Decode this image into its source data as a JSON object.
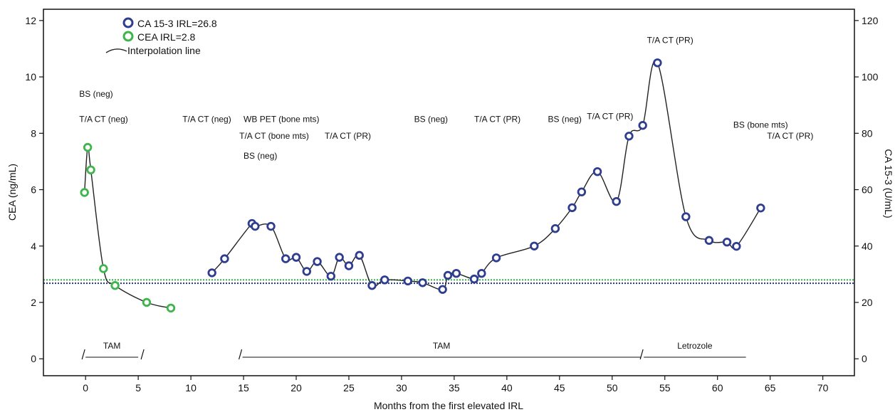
{
  "chart_data": {
    "type": "line",
    "xlabel": "Months from the first elevated IRL",
    "ylabel_left": "CEA (ng/mL)",
    "ylabel_right": "CA 15-3 (U/mL)",
    "xlim": [
      -4,
      73
    ],
    "ylim_left": [
      -0.6,
      12.4
    ],
    "ylim_right": [
      -6,
      124
    ],
    "x_ticks": [
      0,
      5,
      10,
      15,
      20,
      25,
      30,
      35,
      40,
      45,
      50,
      55,
      60,
      65,
      70
    ],
    "y_left_ticks": [
      0,
      2,
      4,
      6,
      8,
      10,
      12
    ],
    "y_right_ticks": [
      0,
      20,
      40,
      60,
      80,
      100,
      120
    ],
    "legend": [
      {
        "label": "CA 15-3 IRL=26.8",
        "color": "#2e3d8f",
        "marker": "circle"
      },
      {
        "label": "CEA IRL=2.8",
        "color": "#3db54a",
        "marker": "circle"
      },
      {
        "label": "Interpolation line",
        "color": "#222222",
        "marker": "line"
      }
    ],
    "series": [
      {
        "name": "CEA IRL=2.8",
        "axis": "left",
        "color": "#3db54a",
        "points": [
          [
            -0.1,
            5.9
          ],
          [
            0.2,
            7.5
          ],
          [
            0.5,
            6.7
          ],
          [
            1.7,
            3.2
          ],
          [
            2.8,
            2.6
          ],
          [
            5.8,
            2.0
          ],
          [
            8.1,
            1.8
          ]
        ]
      },
      {
        "name": "CA 15-3 IRL=26.8",
        "axis": "right",
        "color": "#2e3d8f",
        "points": [
          [
            12.0,
            30.5
          ],
          [
            13.2,
            35.5
          ],
          [
            15.8,
            48.0
          ],
          [
            16.1,
            47.0
          ],
          [
            17.6,
            47.0
          ],
          [
            19.0,
            35.5
          ],
          [
            20.0,
            36.0
          ],
          [
            21.0,
            31.0
          ],
          [
            22.0,
            34.5
          ],
          [
            23.3,
            29.3
          ],
          [
            24.1,
            36.0
          ],
          [
            25.0,
            33.0
          ],
          [
            26.0,
            36.7
          ],
          [
            27.2,
            26.0
          ],
          [
            28.4,
            28.0
          ],
          [
            30.6,
            27.6
          ],
          [
            32.0,
            27.0
          ],
          [
            33.9,
            24.6
          ],
          [
            34.4,
            29.6
          ],
          [
            35.2,
            30.3
          ],
          [
            36.9,
            28.3
          ],
          [
            37.6,
            30.3
          ],
          [
            39.0,
            35.8
          ],
          [
            42.6,
            40.0
          ],
          [
            44.6,
            46.2
          ],
          [
            46.2,
            53.6
          ],
          [
            47.1,
            59.2
          ],
          [
            48.6,
            66.4
          ],
          [
            50.4,
            55.8
          ],
          [
            51.6,
            79.0
          ],
          [
            52.9,
            82.8
          ],
          [
            54.3,
            105.0
          ],
          [
            57.0,
            50.4
          ],
          [
            59.2,
            42.0
          ],
          [
            60.9,
            41.4
          ],
          [
            61.8,
            39.9
          ],
          [
            64.1,
            53.5
          ]
        ]
      }
    ],
    "reference_lines": [
      {
        "label": "CEA IRL=2.8",
        "axis": "left",
        "value": 2.8,
        "color": "#3db54a"
      },
      {
        "label": "CA 15-3 IRL=26.8",
        "axis": "right",
        "value": 26.8,
        "color": "#2e3d8f"
      }
    ],
    "annotations": [
      {
        "text": "BS (neg)",
        "x": -0.6,
        "y": 9.3
      },
      {
        "text": "T/A CT (neg)",
        "x": -0.6,
        "y": 8.4
      },
      {
        "text": "T/A CT (neg)",
        "x": 9.2,
        "y": 8.4
      },
      {
        "text": "WB PET (bone mts)",
        "x": 15.0,
        "y": 8.4
      },
      {
        "text": "T/A CT (bone mts)",
        "x": 14.6,
        "y": 7.8
      },
      {
        "text": "T/A CT (PR)",
        "x": 22.7,
        "y": 7.8
      },
      {
        "text": "BS (neg)",
        "x": 15.0,
        "y": 7.1
      },
      {
        "text": "BS (neg)",
        "x": 31.2,
        "y": 8.4
      },
      {
        "text": "T/A CT (PR)",
        "x": 36.9,
        "y": 8.4
      },
      {
        "text": "BS (neg)",
        "x": 43.9,
        "y": 8.4
      },
      {
        "text": "T/A CT (PR)",
        "x": 47.6,
        "y": 8.5
      },
      {
        "text": "T/A CT (PR)",
        "x": 53.3,
        "y": 11.2
      },
      {
        "text": "BS (bone mts)",
        "x": 61.5,
        "y": 8.2
      },
      {
        "text": "T/A CT (PR)",
        "x": 64.7,
        "y": 7.8
      }
    ],
    "treatments": [
      {
        "label": "TAM",
        "start": 0.0,
        "end": 5.0
      },
      {
        "label": "TAM",
        "start": 14.9,
        "end": 52.7
      },
      {
        "label": "Letrozole",
        "start": 53.0,
        "end": 62.7
      }
    ]
  }
}
